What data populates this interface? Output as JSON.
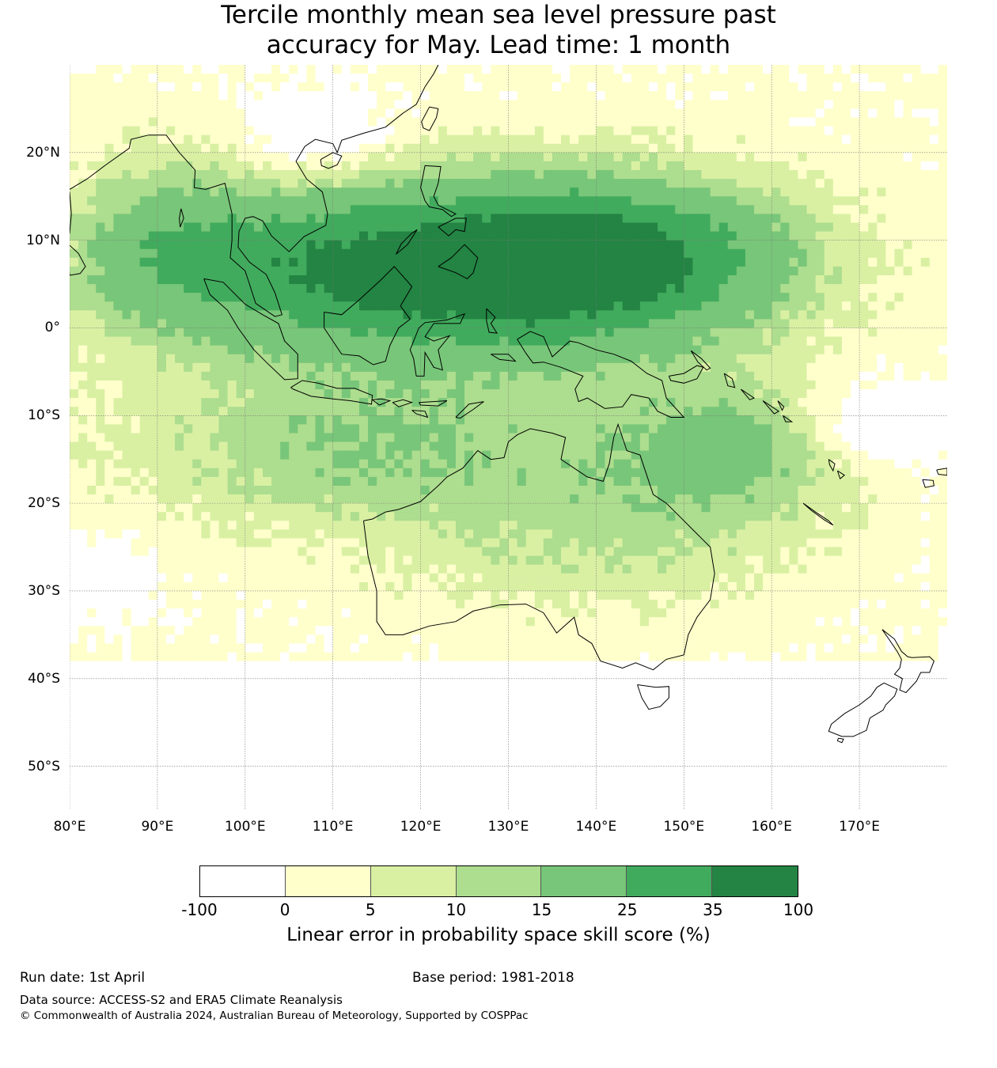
{
  "title": {
    "line1": "Tercile monthly mean sea level pressure past",
    "line2": "accuracy for May. Lead time: 1 month"
  },
  "map": {
    "lon_range": [
      80,
      180
    ],
    "lat_range": [
      -55,
      30
    ],
    "lat_ticks": [
      {
        "value": 20,
        "label": "20°N"
      },
      {
        "value": 10,
        "label": "10°N"
      },
      {
        "value": 0,
        "label": "0°"
      },
      {
        "value": -10,
        "label": "10°S"
      },
      {
        "value": -20,
        "label": "20°S"
      },
      {
        "value": -30,
        "label": "30°S"
      },
      {
        "value": -40,
        "label": "40°S"
      },
      {
        "value": -50,
        "label": "50°S"
      }
    ],
    "lon_ticks": [
      {
        "value": 80,
        "label": "80°E"
      },
      {
        "value": 90,
        "label": "90°E"
      },
      {
        "value": 100,
        "label": "100°E"
      },
      {
        "value": 110,
        "label": "110°E"
      },
      {
        "value": 120,
        "label": "120°E"
      },
      {
        "value": 130,
        "label": "130°E"
      },
      {
        "value": 140,
        "label": "140°E"
      },
      {
        "value": 150,
        "label": "150°E"
      },
      {
        "value": 160,
        "label": "160°E"
      },
      {
        "value": 170,
        "label": "170°E"
      }
    ]
  },
  "colorbar": {
    "ticks": [
      "-100",
      "0",
      "5",
      "10",
      "15",
      "25",
      "35",
      "100"
    ],
    "colors": [
      "#ffffff",
      "#ffffcc",
      "#d9f0a3",
      "#addd8e",
      "#78c679",
      "#41ab5d",
      "#238443"
    ],
    "label": "Linear error in probability space skill score (%)"
  },
  "footer": {
    "run_date": "Run date: 1st April",
    "base_period": "Base period: 1981-2018",
    "data_source": "Data source: ACCESS-S2 and ERA5 Climate Reanalysis",
    "copyright": "© Commonwealth of Australia 2024, Australian Bureau of Meteorology, Supported by COSPPac"
  }
}
